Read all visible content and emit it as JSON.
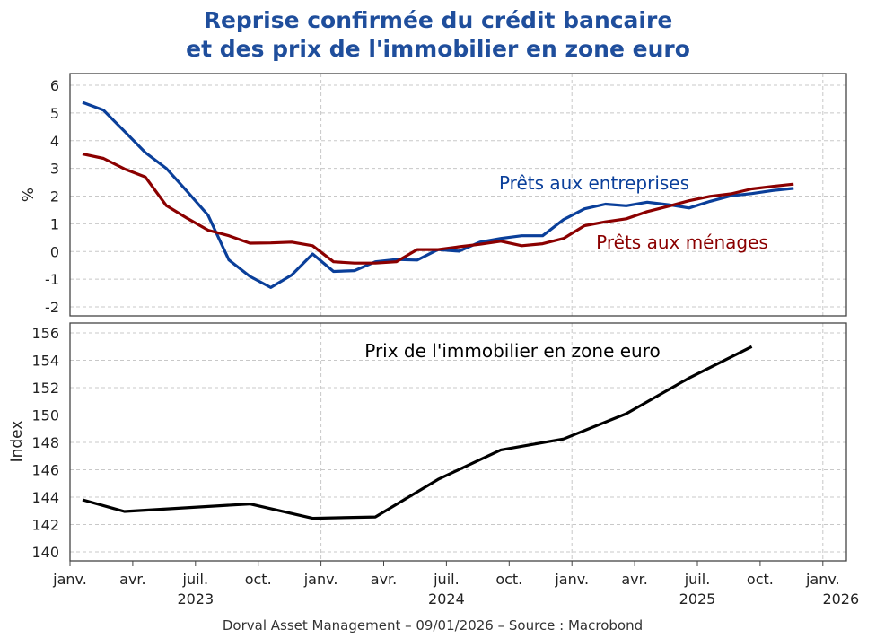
{
  "title_line1": "Reprise confirmée du crédit bancaire",
  "title_line2": "et des prix de l'immobilier en zone euro",
  "footer": "Dorval Asset Management – 09/01/2026 –   Source : Macrobond",
  "colors": {
    "title": "#1f4e9c",
    "entreprises": "#0a3f9a",
    "menages": "#8b0000",
    "immobilier": "#000000",
    "grid": "#c8c8c8"
  },
  "x_axis": {
    "months": [
      "janv.",
      "avr.",
      "juil.",
      "oct.",
      "janv.",
      "avr.",
      "juil.",
      "oct.",
      "janv.",
      "avr.",
      "juil.",
      "oct.",
      "janv."
    ],
    "years": [
      "2023",
      "2024",
      "2025",
      "2026"
    ],
    "range": [
      "2023-01",
      "2026-01"
    ]
  },
  "chart_data": [
    {
      "type": "line",
      "ylabel": "%",
      "ylim": [
        -2,
        6
      ],
      "yticks": [
        -2,
        -1,
        0,
        1,
        2,
        3,
        4,
        5,
        6
      ],
      "grid": true,
      "x": [
        "2023-01",
        "2023-02",
        "2023-03",
        "2023-04",
        "2023-05",
        "2023-06",
        "2023-07",
        "2023-08",
        "2023-09",
        "2023-10",
        "2023-11",
        "2023-12",
        "2024-01",
        "2024-02",
        "2024-03",
        "2024-04",
        "2024-05",
        "2024-06",
        "2024-07",
        "2024-08",
        "2024-09",
        "2024-10",
        "2024-11",
        "2024-12",
        "2025-01",
        "2025-02",
        "2025-03",
        "2025-04",
        "2025-05",
        "2025-06",
        "2025-07",
        "2025-08",
        "2025-09",
        "2025-10",
        "2025-11"
      ],
      "series": [
        {
          "name": "Prêts aux entreprises",
          "color": "#0a3f9a",
          "values": [
            5.38,
            5.1,
            4.34,
            3.57,
            3.0,
            2.17,
            1.31,
            -0.31,
            -0.9,
            -1.3,
            -0.85,
            -0.09,
            -0.72,
            -0.69,
            -0.37,
            -0.29,
            -0.31,
            0.07,
            0.01,
            0.34,
            0.47,
            0.57,
            0.57,
            1.15,
            1.54,
            1.71,
            1.65,
            1.78,
            1.69,
            1.57,
            1.81,
            2.01,
            2.09,
            2.2,
            2.28
          ]
        },
        {
          "name": "Prêts aux ménages",
          "color": "#8b0000",
          "values": [
            3.52,
            3.36,
            2.98,
            2.69,
            1.66,
            1.2,
            0.77,
            0.57,
            0.3,
            0.31,
            0.34,
            0.21,
            -0.37,
            -0.42,
            -0.42,
            -0.37,
            0.07,
            0.07,
            0.17,
            0.26,
            0.37,
            0.21,
            0.28,
            0.47,
            0.93,
            1.07,
            1.18,
            1.44,
            1.63,
            1.83,
            1.99,
            2.08,
            2.26,
            2.35,
            2.43
          ]
        }
      ]
    },
    {
      "type": "line",
      "ylabel": "Index",
      "ylim": [
        140,
        156
      ],
      "yticks": [
        140,
        142,
        144,
        146,
        148,
        150,
        152,
        154,
        156
      ],
      "grid": true,
      "x": [
        "2023-01",
        "2023-03",
        "2023-09",
        "2023-12",
        "2024-03",
        "2024-06",
        "2024-09",
        "2024-12",
        "2025-03",
        "2025-06",
        "2025-09"
      ],
      "series": [
        {
          "name": "Prix de l'immobilier en zone euro",
          "color": "#000000",
          "values": [
            143.8,
            142.95,
            143.5,
            142.45,
            142.55,
            145.3,
            147.45,
            148.25,
            150.1,
            152.7,
            155.0
          ]
        }
      ]
    }
  ]
}
